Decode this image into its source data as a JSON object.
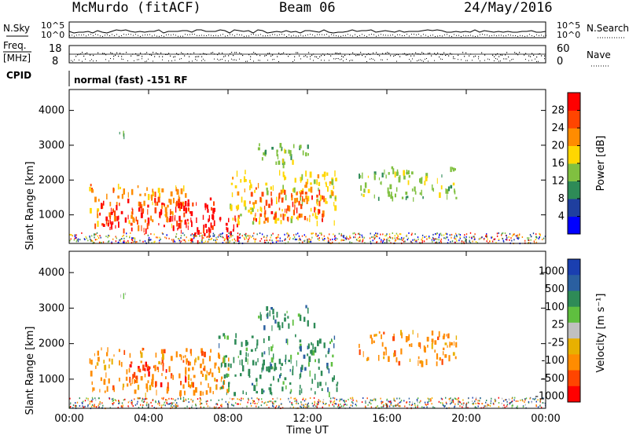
{
  "header": {
    "station": "McMurdo (fitACF)",
    "beam": "Beam 06",
    "date": "24/May/2016"
  },
  "status_panels": {
    "nsky_label": "N.Sky",
    "nsearch_label": "N.Search",
    "noise_ticks": [
      "10^5",
      "10^0"
    ],
    "freq_label_line1": "Freq.",
    "freq_label_line2": "[MHz]",
    "freq_ticks": [
      "18",
      "8"
    ],
    "nave_label": "Nave",
    "nave_ticks": [
      "60",
      "0"
    ],
    "cpid_label": "CPID",
    "cpid_text": "normal (fast) -151 RF"
  },
  "colors": {
    "power_scale": [
      "#0000ff",
      "#1f3f9f",
      "#2e8b57",
      "#80c040",
      "#ffd700",
      "#ff8c00",
      "#ff4500",
      "#ff0000"
    ],
    "velocity_scale": [
      "#1a3fb0",
      "#2a5fa0",
      "#2e8b57",
      "#5fbf3f",
      "#c0c0c0",
      "#e8b000",
      "#ff8c00",
      "#ff4500",
      "#ff0000"
    ]
  },
  "chart_data": [
    {
      "type": "heatmap",
      "name": "power",
      "xlabel": "",
      "ylabel": "Slant Range [km]",
      "xlim": [
        "00:00",
        "24:00"
      ],
      "ylim": [
        180,
        4600
      ],
      "y_ticks": [
        "1000",
        "2000",
        "3000",
        "4000"
      ],
      "colorbar_label": "Power [dB]",
      "colorbar_ticks": [
        "4",
        "8",
        "12",
        "16",
        "20",
        "24",
        "28"
      ],
      "regions": [
        {
          "t0": 1.0,
          "t1": 6.0,
          "r0": 700,
          "r1": 1900,
          "value": 20
        },
        {
          "t0": 1.5,
          "t1": 7.5,
          "r0": 600,
          "r1": 1500,
          "value": 28
        },
        {
          "t0": 5.5,
          "t1": 8.5,
          "r0": 250,
          "r1": 1000,
          "value": 28
        },
        {
          "t0": 8.0,
          "t1": 13.5,
          "r0": 800,
          "r1": 2300,
          "value": 16
        },
        {
          "t0": 9.0,
          "t1": 13.0,
          "r0": 900,
          "r1": 1800,
          "value": 24
        },
        {
          "t0": 9.5,
          "t1": 12.5,
          "r0": 2500,
          "r1": 3100,
          "value": 12
        },
        {
          "t0": 14.5,
          "t1": 19.5,
          "r0": 1500,
          "r1": 2400,
          "value": 12
        },
        {
          "t0": 2.5,
          "t1": 3.0,
          "r0": 3200,
          "r1": 3500,
          "value": 8
        }
      ]
    },
    {
      "type": "heatmap",
      "name": "velocity",
      "xlabel": "Time UT",
      "ylabel": "Slant Range [km]",
      "xlim": [
        "00:00",
        "24:00"
      ],
      "ylim": [
        180,
        4600
      ],
      "x_ticks": [
        "00:00",
        "04:00",
        "08:00",
        "12:00",
        "16:00",
        "20:00",
        "00:00"
      ],
      "y_ticks": [
        "1000",
        "2000",
        "3000",
        "4000"
      ],
      "colorbar_label": "Velocity [m s⁻¹]",
      "colorbar_ticks": [
        "1000",
        "500",
        "100",
        "25",
        "-25",
        "-100",
        "-500",
        "-1000"
      ],
      "regions": [
        {
          "t0": 1.0,
          "t1": 8.0,
          "r0": 600,
          "r1": 1900,
          "value": -100
        },
        {
          "t0": 3.0,
          "t1": 6.0,
          "r0": 900,
          "r1": 1500,
          "value": -500
        },
        {
          "t0": 7.5,
          "t1": 13.5,
          "r0": 600,
          "r1": 2300,
          "value": 100
        },
        {
          "t0": 9.5,
          "t1": 12.5,
          "r0": 2500,
          "r1": 3100,
          "value": 100
        },
        {
          "t0": 14.5,
          "t1": 19.5,
          "r0": 1500,
          "r1": 2400,
          "value": -100
        },
        {
          "t0": 2.5,
          "t1": 3.0,
          "r0": 3200,
          "r1": 3500,
          "value": 25
        }
      ]
    }
  ]
}
